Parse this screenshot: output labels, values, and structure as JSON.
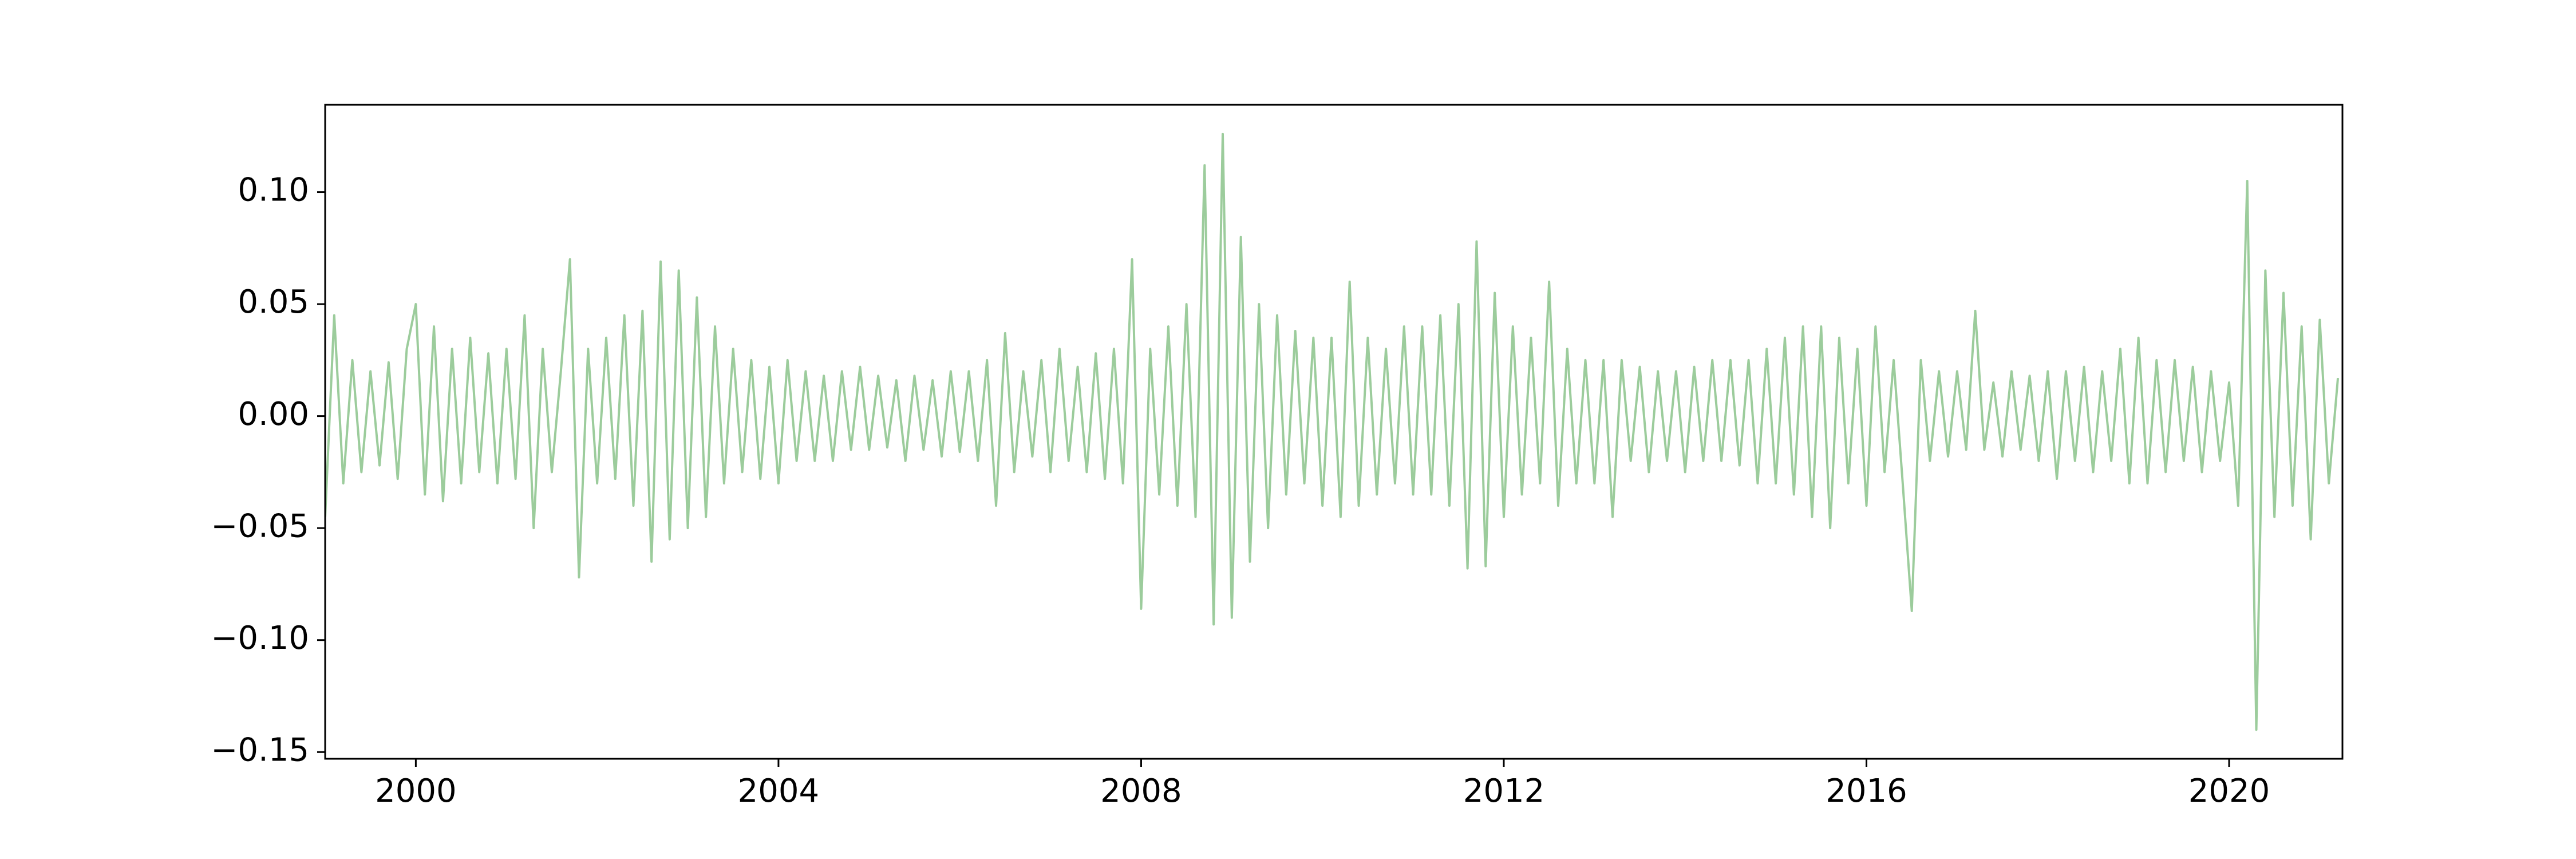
{
  "chart_data": {
    "type": "line",
    "color": "#9ccc9c",
    "xlim": [
      1999.0,
      2021.25
    ],
    "ylim": [
      -0.153,
      0.139
    ],
    "xticks": [
      2000,
      2004,
      2008,
      2012,
      2016,
      2020
    ],
    "yticks": [
      {
        "value": 0.1,
        "label": "0.10"
      },
      {
        "value": 0.05,
        "label": "0.05"
      },
      {
        "value": 0,
        "label": "0.00"
      },
      {
        "value": -0.05,
        "label": "−0.05"
      },
      {
        "value": -0.1,
        "label": "−0.10"
      },
      {
        "value": -0.15,
        "label": "−0.15"
      }
    ],
    "x": [
      1999,
      1999.1,
      1999.2,
      1999.3,
      1999.4,
      1999.5,
      1999.6,
      1999.7,
      1999.8,
      1999.9,
      2000,
      2000.1,
      2000.2,
      2000.3,
      2000.4,
      2000.5,
      2000.6,
      2000.7,
      2000.8,
      2000.9,
      2001,
      2001.1,
      2001.2,
      2001.3,
      2001.4,
      2001.5,
      2001.6,
      2001.7,
      2001.8,
      2001.9,
      2002,
      2002.1,
      2002.2,
      2002.3,
      2002.4,
      2002.5,
      2002.6,
      2002.7,
      2002.8,
      2002.9,
      2003,
      2003.1,
      2003.2,
      2003.3,
      2003.4,
      2003.5,
      2003.6,
      2003.7,
      2003.8,
      2003.9,
      2004,
      2004.1,
      2004.2,
      2004.3,
      2004.4,
      2004.5,
      2004.6,
      2004.7,
      2004.8,
      2004.9,
      2005,
      2005.1,
      2005.2,
      2005.3,
      2005.4,
      2005.5,
      2005.6,
      2005.7,
      2005.8,
      2005.9,
      2006,
      2006.1,
      2006.2,
      2006.3,
      2006.4,
      2006.5,
      2006.6,
      2006.7,
      2006.8,
      2006.9,
      2007,
      2007.1,
      2007.2,
      2007.3,
      2007.4,
      2007.5,
      2007.6,
      2007.7,
      2007.8,
      2007.9,
      2008,
      2008.1,
      2008.2,
      2008.3,
      2008.4,
      2008.5,
      2008.6,
      2008.7,
      2008.8,
      2008.9,
      2009,
      2009.1,
      2009.2,
      2009.3,
      2009.4,
      2009.5,
      2009.6,
      2009.7,
      2009.8,
      2009.9,
      2010,
      2010.1,
      2010.2,
      2010.3,
      2010.4,
      2010.5,
      2010.6,
      2010.7,
      2010.8,
      2010.9,
      2011,
      2011.1,
      2011.2,
      2011.3,
      2011.4,
      2011.5,
      2011.6,
      2011.7,
      2011.8,
      2011.9,
      2012,
      2012.1,
      2012.2,
      2012.3,
      2012.4,
      2012.5,
      2012.6,
      2012.7,
      2012.8,
      2012.9,
      2013,
      2013.1,
      2013.2,
      2013.3,
      2013.4,
      2013.5,
      2013.6,
      2013.7,
      2013.8,
      2013.9,
      2014,
      2014.1,
      2014.2,
      2014.3,
      2014.4,
      2014.5,
      2014.6,
      2014.7,
      2014.8,
      2014.9,
      2015,
      2015.1,
      2015.2,
      2015.3,
      2015.4,
      2015.5,
      2015.6,
      2015.7,
      2015.8,
      2015.9,
      2016,
      2016.1,
      2016.2,
      2016.3,
      2016.4,
      2016.5,
      2016.6,
      2016.7,
      2016.8,
      2016.9,
      2017,
      2017.1,
      2017.2,
      2017.3,
      2017.4,
      2017.5,
      2017.6,
      2017.7,
      2017.8,
      2017.9,
      2018,
      2018.1,
      2018.2,
      2018.3,
      2018.4,
      2018.5,
      2018.6,
      2018.7,
      2018.8,
      2018.9,
      2019,
      2019.1,
      2019.2,
      2019.3,
      2019.4,
      2019.5,
      2019.6,
      2019.7,
      2019.8,
      2019.9,
      2020,
      2020.1,
      2020.2,
      2020.3,
      2020.4,
      2020.5,
      2020.6,
      2020.7,
      2020.8,
      2020.9,
      2021,
      2021.1,
      2021.2
    ],
    "values": [
      -0.045,
      0.045,
      -0.03,
      0.025,
      -0.025,
      0.02,
      -0.022,
      0.024,
      -0.028,
      0.03,
      0.05,
      -0.035,
      0.04,
      -0.038,
      0.03,
      -0.03,
      0.035,
      -0.025,
      0.028,
      -0.03,
      0.03,
      -0.028,
      0.045,
      -0.05,
      0.03,
      -0.025,
      0.02,
      0.07,
      -0.072,
      0.03,
      -0.03,
      0.035,
      -0.028,
      0.045,
      -0.04,
      0.047,
      -0.065,
      0.069,
      -0.055,
      0.065,
      -0.05,
      0.053,
      -0.045,
      0.04,
      -0.03,
      0.03,
      -0.025,
      0.025,
      -0.028,
      0.022,
      -0.03,
      0.025,
      -0.02,
      0.02,
      -0.02,
      0.018,
      -0.02,
      0.02,
      -0.015,
      0.022,
      -0.015,
      0.018,
      -0.014,
      0.016,
      -0.02,
      0.018,
      -0.015,
      0.016,
      -0.018,
      0.02,
      -0.016,
      0.02,
      -0.02,
      0.025,
      -0.04,
      0.037,
      -0.025,
      0.02,
      -0.018,
      0.025,
      -0.025,
      0.03,
      -0.02,
      0.022,
      -0.025,
      0.028,
      -0.028,
      0.03,
      -0.03,
      0.07,
      -0.086,
      0.03,
      -0.035,
      0.04,
      -0.04,
      0.05,
      -0.045,
      0.112,
      -0.093,
      0.126,
      -0.09,
      0.08,
      -0.065,
      0.05,
      -0.05,
      0.045,
      -0.035,
      0.038,
      -0.03,
      0.035,
      -0.04,
      0.035,
      -0.045,
      0.06,
      -0.04,
      0.035,
      -0.035,
      0.03,
      -0.03,
      0.04,
      -0.035,
      0.04,
      -0.035,
      0.045,
      -0.04,
      0.05,
      -0.068,
      0.078,
      -0.067,
      0.055,
      -0.045,
      0.04,
      -0.035,
      0.035,
      -0.03,
      0.06,
      -0.04,
      0.03,
      -0.03,
      0.025,
      -0.03,
      0.025,
      -0.045,
      0.025,
      -0.02,
      0.022,
      -0.025,
      0.02,
      -0.02,
      0.02,
      -0.025,
      0.022,
      -0.02,
      0.025,
      -0.02,
      0.025,
      -0.022,
      0.025,
      -0.03,
      0.03,
      -0.03,
      0.035,
      -0.035,
      0.04,
      -0.045,
      0.04,
      -0.05,
      0.035,
      -0.03,
      0.03,
      -0.04,
      0.04,
      -0.025,
      0.025,
      -0.03,
      -0.087,
      0.025,
      -0.02,
      0.02,
      -0.018,
      0.02,
      -0.015,
      0.047,
      -0.015,
      0.015,
      -0.018,
      0.02,
      -0.015,
      0.018,
      -0.02,
      0.02,
      -0.028,
      0.02,
      -0.02,
      0.022,
      -0.025,
      0.02,
      -0.02,
      0.03,
      -0.03,
      0.035,
      -0.03,
      0.025,
      -0.025,
      0.025,
      -0.02,
      0.022,
      -0.025,
      0.02,
      -0.02,
      0.015,
      -0.04,
      0.105,
      -0.14,
      0.065,
      -0.045,
      0.055,
      -0.04,
      0.04,
      -0.055,
      0.043,
      -0.03,
      0.017
    ]
  }
}
